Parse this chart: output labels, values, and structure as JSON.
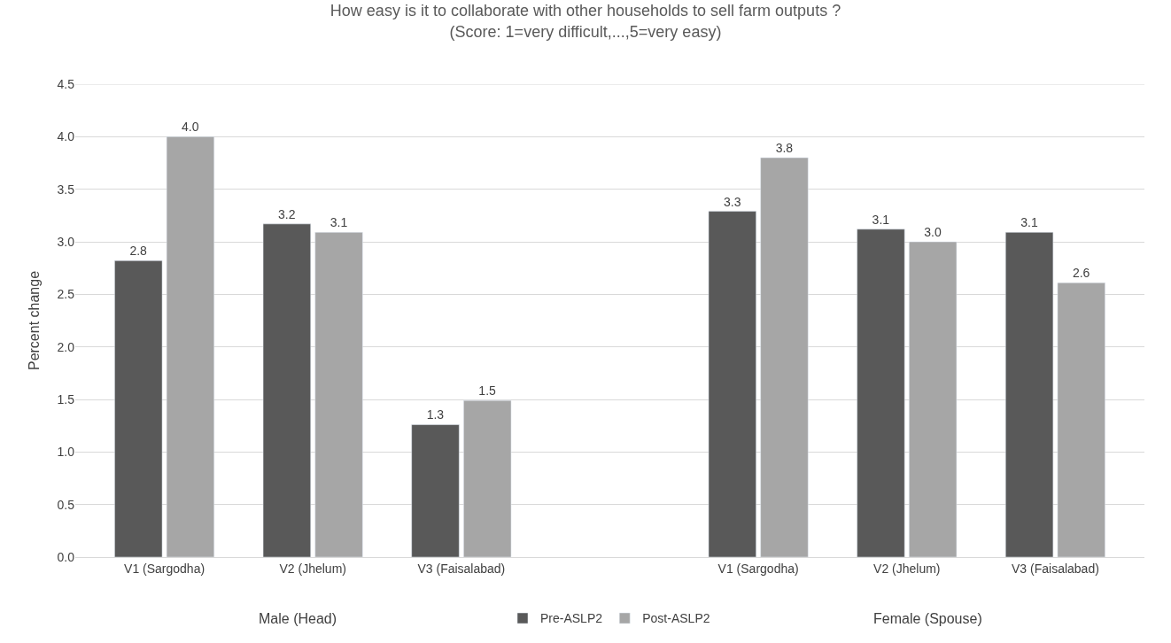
{
  "chart_data": {
    "type": "bar",
    "title": "How easy is it to collaborate with other households to sell farm outputs ?\n(Score: 1=very difficult,...,5=very easy)",
    "ylabel": "Percent change",
    "categories": [
      "V1 (Sargodha)",
      "V2 (Jhelum)",
      "V3 (Faisalabad)",
      null,
      "V1 (Sargodha)",
      "V2 (Jhelum)",
      "V3 (Faisalabad)"
    ],
    "series": [
      {
        "name": "Pre-ASLP2",
        "color": "#595959",
        "values": [
          2.82,
          3.17,
          1.26,
          null,
          3.29,
          3.12,
          3.09
        ],
        "value_labels": [
          "2.8",
          "3.2",
          "1.3",
          null,
          "3.3",
          "3.1",
          "3.1"
        ]
      },
      {
        "name": "Post-ASLP2",
        "color": "#a6a6a6",
        "values": [
          4.0,
          3.09,
          1.49,
          null,
          3.8,
          3.0,
          2.61
        ],
        "value_labels": [
          "4.0",
          "3.1",
          "1.5",
          null,
          "3.8",
          "3.0",
          "2.6"
        ]
      }
    ],
    "annotations": [
      "Male (Head)",
      "Female (Spouse)"
    ],
    "ylim": [
      0,
      4.5
    ],
    "yticks": [
      "0.0",
      "0.5",
      "1.0",
      "1.5",
      "2.0",
      "2.5",
      "3.0",
      "3.5",
      "4.0",
      "4.5"
    ],
    "grid": "y",
    "legend": "bottom"
  }
}
